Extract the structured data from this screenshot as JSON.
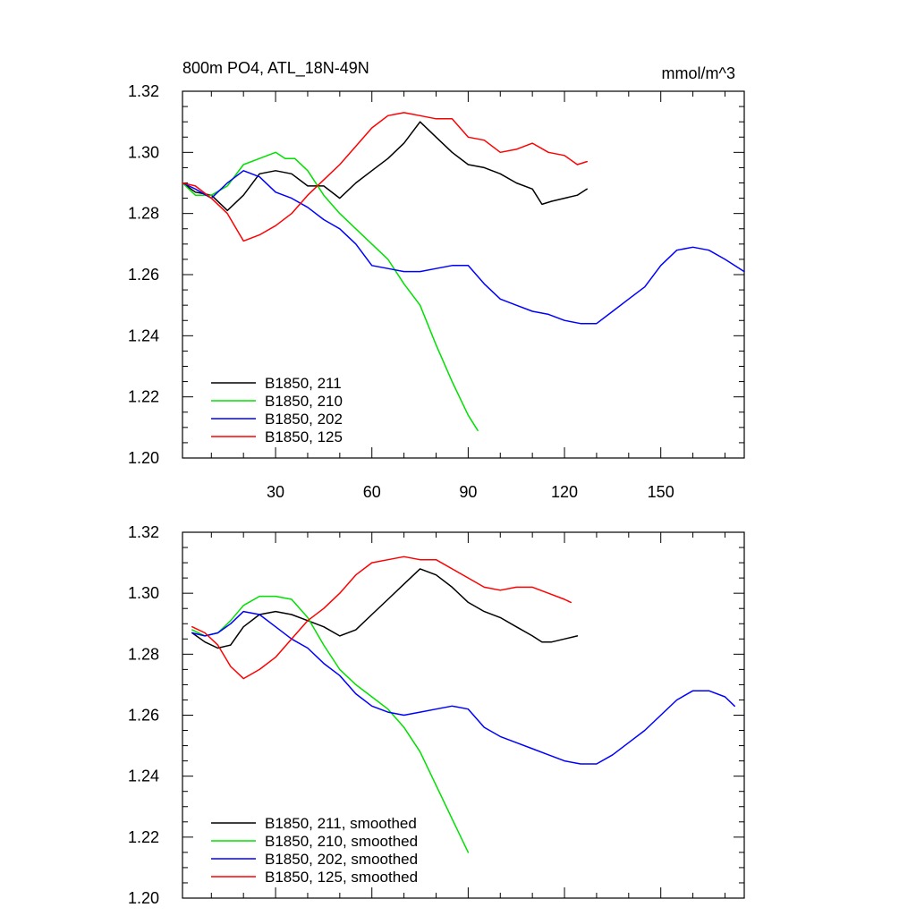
{
  "chart_data": [
    {
      "type": "line",
      "title": "800m PO4, ATL_18N-49N",
      "units": "mmol/m^3",
      "xlim": [
        1,
        176
      ],
      "ylim": [
        1.2,
        1.32
      ],
      "xticks": [
        30,
        60,
        90,
        120,
        150
      ],
      "yticks": [
        1.2,
        1.22,
        1.24,
        1.26,
        1.28,
        1.3,
        1.32
      ],
      "legend_position": "bottom-left",
      "series": [
        {
          "name": "B1850, 211",
          "color": "#000000",
          "x": [
            1,
            5,
            10,
            15,
            20,
            25,
            30,
            35,
            40,
            45,
            50,
            55,
            60,
            65,
            70,
            75,
            80,
            85,
            90,
            95,
            100,
            105,
            110,
            113,
            116,
            120,
            124,
            127
          ],
          "y": [
            1.29,
            1.287,
            1.286,
            1.281,
            1.286,
            1.293,
            1.294,
            1.293,
            1.289,
            1.289,
            1.285,
            1.29,
            1.294,
            1.298,
            1.303,
            1.31,
            1.305,
            1.3,
            1.296,
            1.295,
            1.293,
            1.29,
            1.288,
            1.283,
            1.284,
            1.285,
            1.286,
            1.288
          ]
        },
        {
          "name": "B1850, 210",
          "color": "#00e000",
          "x": [
            1,
            5,
            10,
            15,
            20,
            25,
            30,
            33,
            36,
            40,
            45,
            50,
            55,
            60,
            65,
            70,
            75,
            80,
            85,
            90,
            93
          ],
          "y": [
            1.29,
            1.286,
            1.286,
            1.289,
            1.296,
            1.298,
            1.3,
            1.298,
            1.298,
            1.294,
            1.286,
            1.28,
            1.275,
            1.27,
            1.265,
            1.257,
            1.25,
            1.237,
            1.225,
            1.214,
            1.209
          ]
        },
        {
          "name": "B1850, 202",
          "color": "#0000ff",
          "x": [
            1,
            5,
            10,
            15,
            20,
            25,
            30,
            35,
            40,
            45,
            50,
            55,
            60,
            65,
            70,
            75,
            80,
            85,
            90,
            95,
            100,
            105,
            110,
            115,
            120,
            125,
            130,
            135,
            140,
            145,
            150,
            155,
            160,
            165,
            170,
            176
          ],
          "y": [
            1.29,
            1.288,
            1.285,
            1.29,
            1.294,
            1.292,
            1.287,
            1.285,
            1.282,
            1.278,
            1.275,
            1.27,
            1.263,
            1.262,
            1.261,
            1.261,
            1.262,
            1.263,
            1.263,
            1.257,
            1.252,
            1.25,
            1.248,
            1.247,
            1.245,
            1.244,
            1.244,
            1.248,
            1.252,
            1.256,
            1.263,
            1.268,
            1.269,
            1.268,
            1.265,
            1.261
          ]
        },
        {
          "name": "B1850, 125",
          "color": "#ff0000",
          "x": [
            1,
            5,
            10,
            15,
            20,
            25,
            30,
            35,
            40,
            45,
            50,
            55,
            60,
            65,
            70,
            75,
            80,
            85,
            90,
            95,
            100,
            105,
            110,
            115,
            120,
            124,
            127
          ],
          "y": [
            1.29,
            1.289,
            1.285,
            1.28,
            1.271,
            1.273,
            1.276,
            1.28,
            1.286,
            1.291,
            1.296,
            1.302,
            1.308,
            1.312,
            1.313,
            1.312,
            1.311,
            1.311,
            1.305,
            1.304,
            1.3,
            1.301,
            1.303,
            1.3,
            1.299,
            1.296,
            1.297
          ]
        }
      ]
    },
    {
      "type": "line",
      "xlim": [
        1,
        176
      ],
      "ylim": [
        1.2,
        1.32
      ],
      "yticks": [
        1.2,
        1.22,
        1.24,
        1.26,
        1.28,
        1.3,
        1.32
      ],
      "legend_position": "bottom-left",
      "series": [
        {
          "name": "B1850, 211, smoothed",
          "color": "#000000",
          "x": [
            4,
            8,
            12,
            16,
            20,
            25,
            30,
            35,
            40,
            45,
            50,
            55,
            60,
            65,
            70,
            75,
            80,
            85,
            90,
            95,
            100,
            105,
            110,
            113,
            116,
            120,
            124
          ],
          "y": [
            1.287,
            1.284,
            1.282,
            1.283,
            1.289,
            1.293,
            1.294,
            1.293,
            1.291,
            1.289,
            1.286,
            1.288,
            1.293,
            1.298,
            1.303,
            1.308,
            1.306,
            1.302,
            1.297,
            1.294,
            1.292,
            1.289,
            1.286,
            1.284,
            1.284,
            1.285,
            1.286
          ]
        },
        {
          "name": "B1850, 210, smoothed",
          "color": "#00e000",
          "x": [
            4,
            8,
            12,
            16,
            20,
            25,
            30,
            35,
            40,
            45,
            50,
            55,
            60,
            65,
            70,
            75,
            80,
            85,
            90
          ],
          "y": [
            1.288,
            1.286,
            1.287,
            1.291,
            1.296,
            1.299,
            1.299,
            1.298,
            1.292,
            1.283,
            1.275,
            1.27,
            1.266,
            1.262,
            1.256,
            1.248,
            1.237,
            1.226,
            1.215
          ]
        },
        {
          "name": "B1850, 202, smoothed",
          "color": "#0000ff",
          "x": [
            4,
            8,
            12,
            16,
            20,
            25,
            30,
            35,
            40,
            45,
            50,
            55,
            60,
            65,
            70,
            75,
            80,
            85,
            90,
            95,
            100,
            105,
            110,
            115,
            120,
            125,
            130,
            135,
            140,
            145,
            150,
            155,
            160,
            165,
            170,
            173
          ],
          "y": [
            1.287,
            1.286,
            1.287,
            1.29,
            1.294,
            1.293,
            1.289,
            1.285,
            1.282,
            1.277,
            1.273,
            1.267,
            1.263,
            1.261,
            1.26,
            1.261,
            1.262,
            1.263,
            1.262,
            1.256,
            1.253,
            1.251,
            1.249,
            1.247,
            1.245,
            1.244,
            1.244,
            1.247,
            1.251,
            1.255,
            1.26,
            1.265,
            1.268,
            1.268,
            1.266,
            1.263
          ]
        },
        {
          "name": "B1850, 125, smoothed",
          "color": "#ff0000",
          "x": [
            4,
            8,
            12,
            16,
            20,
            25,
            30,
            35,
            40,
            45,
            50,
            55,
            60,
            65,
            70,
            75,
            80,
            85,
            90,
            95,
            100,
            105,
            110,
            115,
            120,
            122
          ],
          "y": [
            1.289,
            1.287,
            1.283,
            1.276,
            1.272,
            1.275,
            1.279,
            1.285,
            1.291,
            1.295,
            1.3,
            1.306,
            1.31,
            1.311,
            1.312,
            1.311,
            1.311,
            1.308,
            1.305,
            1.302,
            1.301,
            1.302,
            1.302,
            1.3,
            1.298,
            1.297
          ]
        }
      ]
    }
  ]
}
